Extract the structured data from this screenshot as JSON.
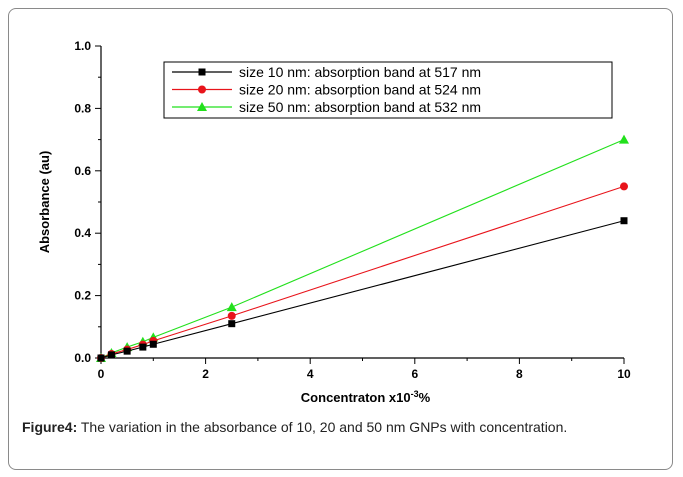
{
  "chart_data": {
    "type": "line",
    "xlabel_main": "Concentraton x10",
    "xlabel_sup": "-3",
    "xlabel_tail": "%",
    "ylabel": "Absorbance (au)",
    "xlim": [
      0,
      10
    ],
    "ylim": [
      0,
      1.0
    ],
    "x_ticks": [
      "0",
      "2",
      "4",
      "6",
      "8",
      "10"
    ],
    "y_ticks": [
      "0.0",
      "0.2",
      "0.4",
      "0.6",
      "0.8",
      "1.0"
    ],
    "legend_position": "top-right",
    "grid": false,
    "x": [
      0,
      0.2,
      0.5,
      0.8,
      1.0,
      2.5,
      10
    ],
    "series": [
      {
        "name": "size 10 nm: absorption band at 517 nm",
        "marker": "square",
        "color": "#000000",
        "values": [
          0,
          0.01,
          0.022,
          0.035,
          0.044,
          0.11,
          0.44
        ]
      },
      {
        "name": "size 20 nm: absorption band at 524 nm",
        "marker": "circle",
        "color": "#e8141b",
        "values": [
          0,
          0.013,
          0.027,
          0.043,
          0.055,
          0.135,
          0.55
        ]
      },
      {
        "name": "size 50 nm: absorption band at 532 nm",
        "marker": "triangle",
        "color": "#22e01c",
        "values": [
          0,
          0.016,
          0.035,
          0.052,
          0.066,
          0.163,
          0.7
        ]
      }
    ]
  },
  "caption": {
    "label": "Figure4:",
    "text": " The variation in the absorbance of 10, 20 and 50 nm GNPs with concentration."
  }
}
